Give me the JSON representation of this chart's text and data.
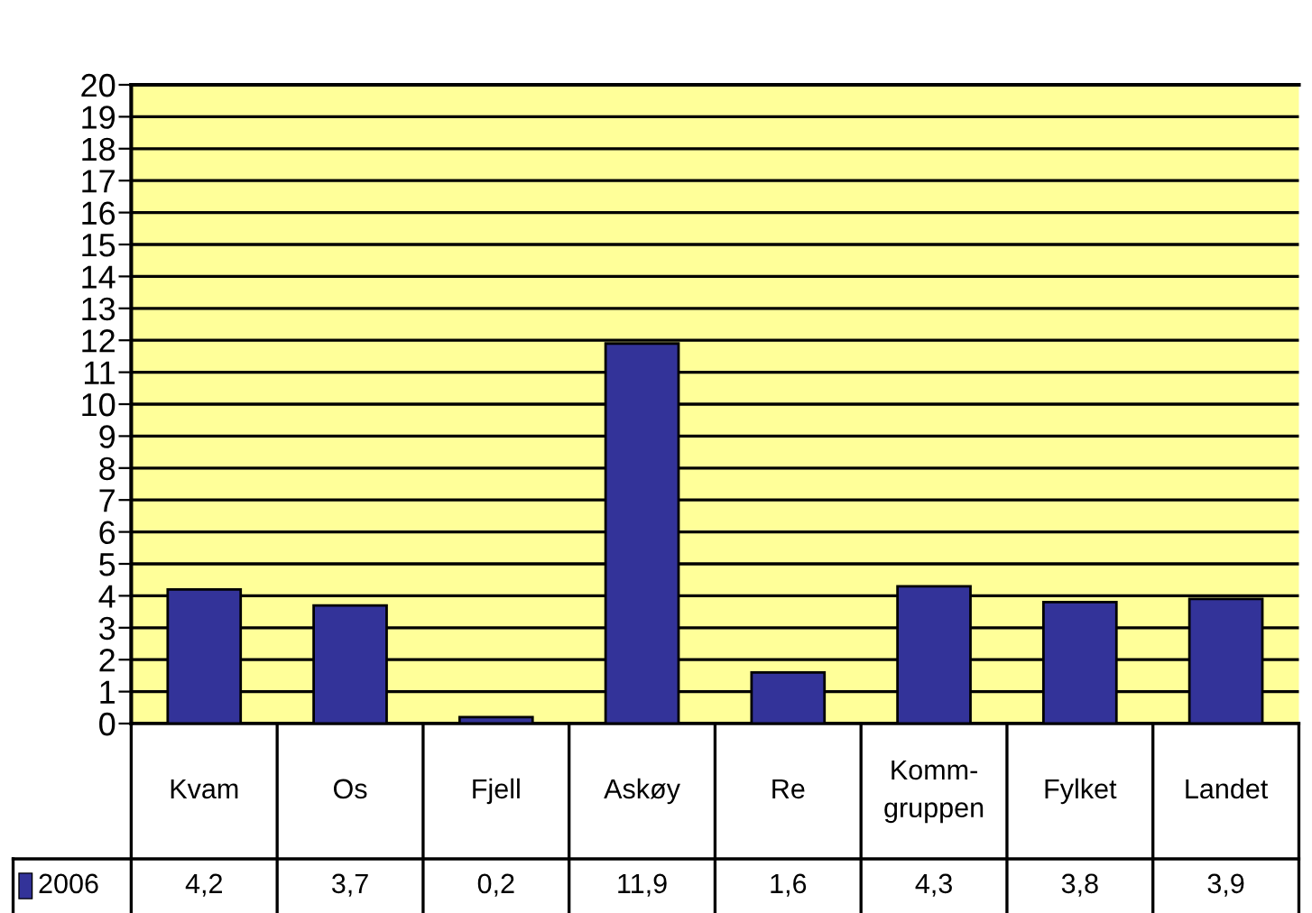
{
  "chart_data": {
    "type": "bar",
    "categories": [
      "Kvam",
      "Os",
      "Fjell",
      "Askøy",
      "Re",
      "Komm-\ngruppen",
      "Fylket",
      "Landet"
    ],
    "series": [
      {
        "name": "2006",
        "color": "#333399",
        "values": [
          4.2,
          3.7,
          0.2,
          11.9,
          1.6,
          4.3,
          3.8,
          3.9
        ],
        "value_labels": [
          "4,2",
          "3,7",
          "0,2",
          "11,9",
          "1,6",
          "4,3",
          "3,8",
          "3,9"
        ]
      }
    ],
    "ylim": [
      0,
      20
    ],
    "yticks": [
      0,
      1,
      2,
      3,
      4,
      5,
      6,
      7,
      8,
      9,
      10,
      11,
      12,
      13,
      14,
      15,
      16,
      17,
      18,
      19,
      20
    ],
    "grid": "y",
    "legend": "bottom"
  }
}
